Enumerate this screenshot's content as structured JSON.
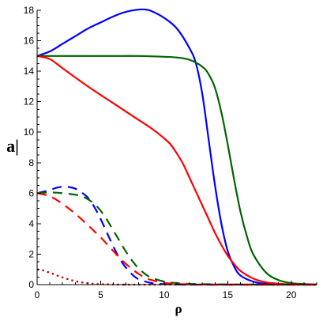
{
  "chart_data": {
    "type": "line",
    "title": "",
    "xlabel": "ρ",
    "ylabel": "a|",
    "xlim": [
      0,
      22
    ],
    "ylim": [
      0,
      18
    ],
    "grid": false,
    "x_ticks": [
      "0",
      "5",
      "10",
      "15",
      "20"
    ],
    "x_tick_values": [
      0,
      5,
      10,
      15,
      20
    ],
    "y_ticks": [
      "0",
      "2",
      "4",
      "6",
      "8",
      "10",
      "12",
      "14",
      "16",
      "18"
    ],
    "y_tick_values": [
      0,
      2,
      4,
      6,
      8,
      10,
      12,
      14,
      16,
      18
    ],
    "series": [
      {
        "color": "#0000ff",
        "style": "solid",
        "x": [
          0,
          1,
          2,
          3,
          4,
          5,
          6,
          7,
          8,
          8.5,
          9,
          10,
          11,
          12,
          12.5,
          13,
          13.5,
          14,
          14.5,
          15,
          15.5,
          16,
          17,
          18,
          19,
          20,
          22
        ],
        "y": [
          15,
          15.3,
          15.8,
          16.3,
          16.8,
          17.2,
          17.6,
          17.9,
          18.05,
          18.05,
          17.95,
          17.5,
          16.8,
          15.5,
          14.5,
          12.5,
          9.5,
          6.5,
          4.0,
          2.2,
          1.2,
          0.6,
          0.2,
          0.05,
          0.02,
          0.01,
          0
        ]
      },
      {
        "color": "#006400",
        "style": "solid",
        "x": [
          0,
          1,
          2,
          4,
          6,
          8,
          10,
          11,
          12,
          13,
          13.5,
          14,
          14.5,
          15,
          15.5,
          16,
          16.5,
          17,
          18,
          19,
          20,
          21,
          22
        ],
        "y": [
          15,
          15,
          15,
          15,
          15,
          15,
          14.95,
          14.9,
          14.75,
          14.3,
          13.8,
          12.9,
          11.3,
          9.2,
          6.9,
          4.8,
          3.2,
          2.0,
          0.8,
          0.3,
          0.1,
          0.04,
          0.01
        ]
      },
      {
        "color": "#ff0000",
        "style": "solid",
        "x": [
          0,
          1,
          2,
          4,
          6,
          8,
          9,
          10,
          10.5,
          11,
          11.5,
          12,
          12.5,
          13,
          13.5,
          14,
          14.5,
          15,
          15.5,
          16,
          17,
          18,
          19,
          20,
          22
        ],
        "y": [
          15,
          14.8,
          14.2,
          13.0,
          11.9,
          10.8,
          10.25,
          9.6,
          9.2,
          8.6,
          7.9,
          7.0,
          6.1,
          5.2,
          4.3,
          3.4,
          2.6,
          1.9,
          1.35,
          0.9,
          0.4,
          0.15,
          0.06,
          0.02,
          0
        ]
      },
      {
        "color": "#0000ff",
        "style": "dashed",
        "x": [
          0,
          1,
          1.5,
          2,
          2.5,
          3,
          3.5,
          4,
          4.5,
          5,
          5.5,
          6,
          6.5,
          7,
          7.5,
          8,
          9,
          10,
          11,
          12,
          14,
          16,
          22
        ],
        "y": [
          6.0,
          6.2,
          6.35,
          6.42,
          6.4,
          6.3,
          6.05,
          5.7,
          5.1,
          4.3,
          3.4,
          2.5,
          1.7,
          1.1,
          0.65,
          0.35,
          0.1,
          0.03,
          0.01,
          0,
          0,
          0,
          0
        ]
      },
      {
        "color": "#006400",
        "style": "dashed",
        "x": [
          0,
          1,
          2,
          3,
          3.5,
          4,
          4.5,
          5,
          5.5,
          6,
          6.5,
          7,
          7.5,
          8,
          8.5,
          9,
          10,
          11,
          12,
          13,
          14,
          16,
          18,
          22
        ],
        "y": [
          6.0,
          6.05,
          6.0,
          5.9,
          5.8,
          5.6,
          5.3,
          4.85,
          4.25,
          3.55,
          2.85,
          2.15,
          1.55,
          1.05,
          0.7,
          0.45,
          0.2,
          0.1,
          0.05,
          0.03,
          0.02,
          0.01,
          0,
          0
        ]
      },
      {
        "color": "#ff0000",
        "style": "dashed",
        "x": [
          0,
          1,
          2,
          3,
          4,
          5,
          5.5,
          6,
          6.5,
          7,
          7.5,
          8,
          8.5,
          9,
          10,
          11,
          12,
          14,
          22
        ],
        "y": [
          6.0,
          5.8,
          5.3,
          4.65,
          3.9,
          3.1,
          2.65,
          2.2,
          1.75,
          1.35,
          1.0,
          0.7,
          0.45,
          0.3,
          0.12,
          0.05,
          0.02,
          0,
          0
        ]
      },
      {
        "color": "#cc0000",
        "style": "dotted",
        "x": [
          0,
          0.5,
          1,
          1.5,
          2,
          2.5,
          3,
          3.5,
          4,
          4.5,
          5,
          6,
          7,
          8,
          22
        ],
        "y": [
          1.0,
          0.92,
          0.78,
          0.62,
          0.47,
          0.34,
          0.23,
          0.15,
          0.09,
          0.05,
          0.03,
          0.01,
          0,
          0,
          0
        ]
      }
    ]
  }
}
